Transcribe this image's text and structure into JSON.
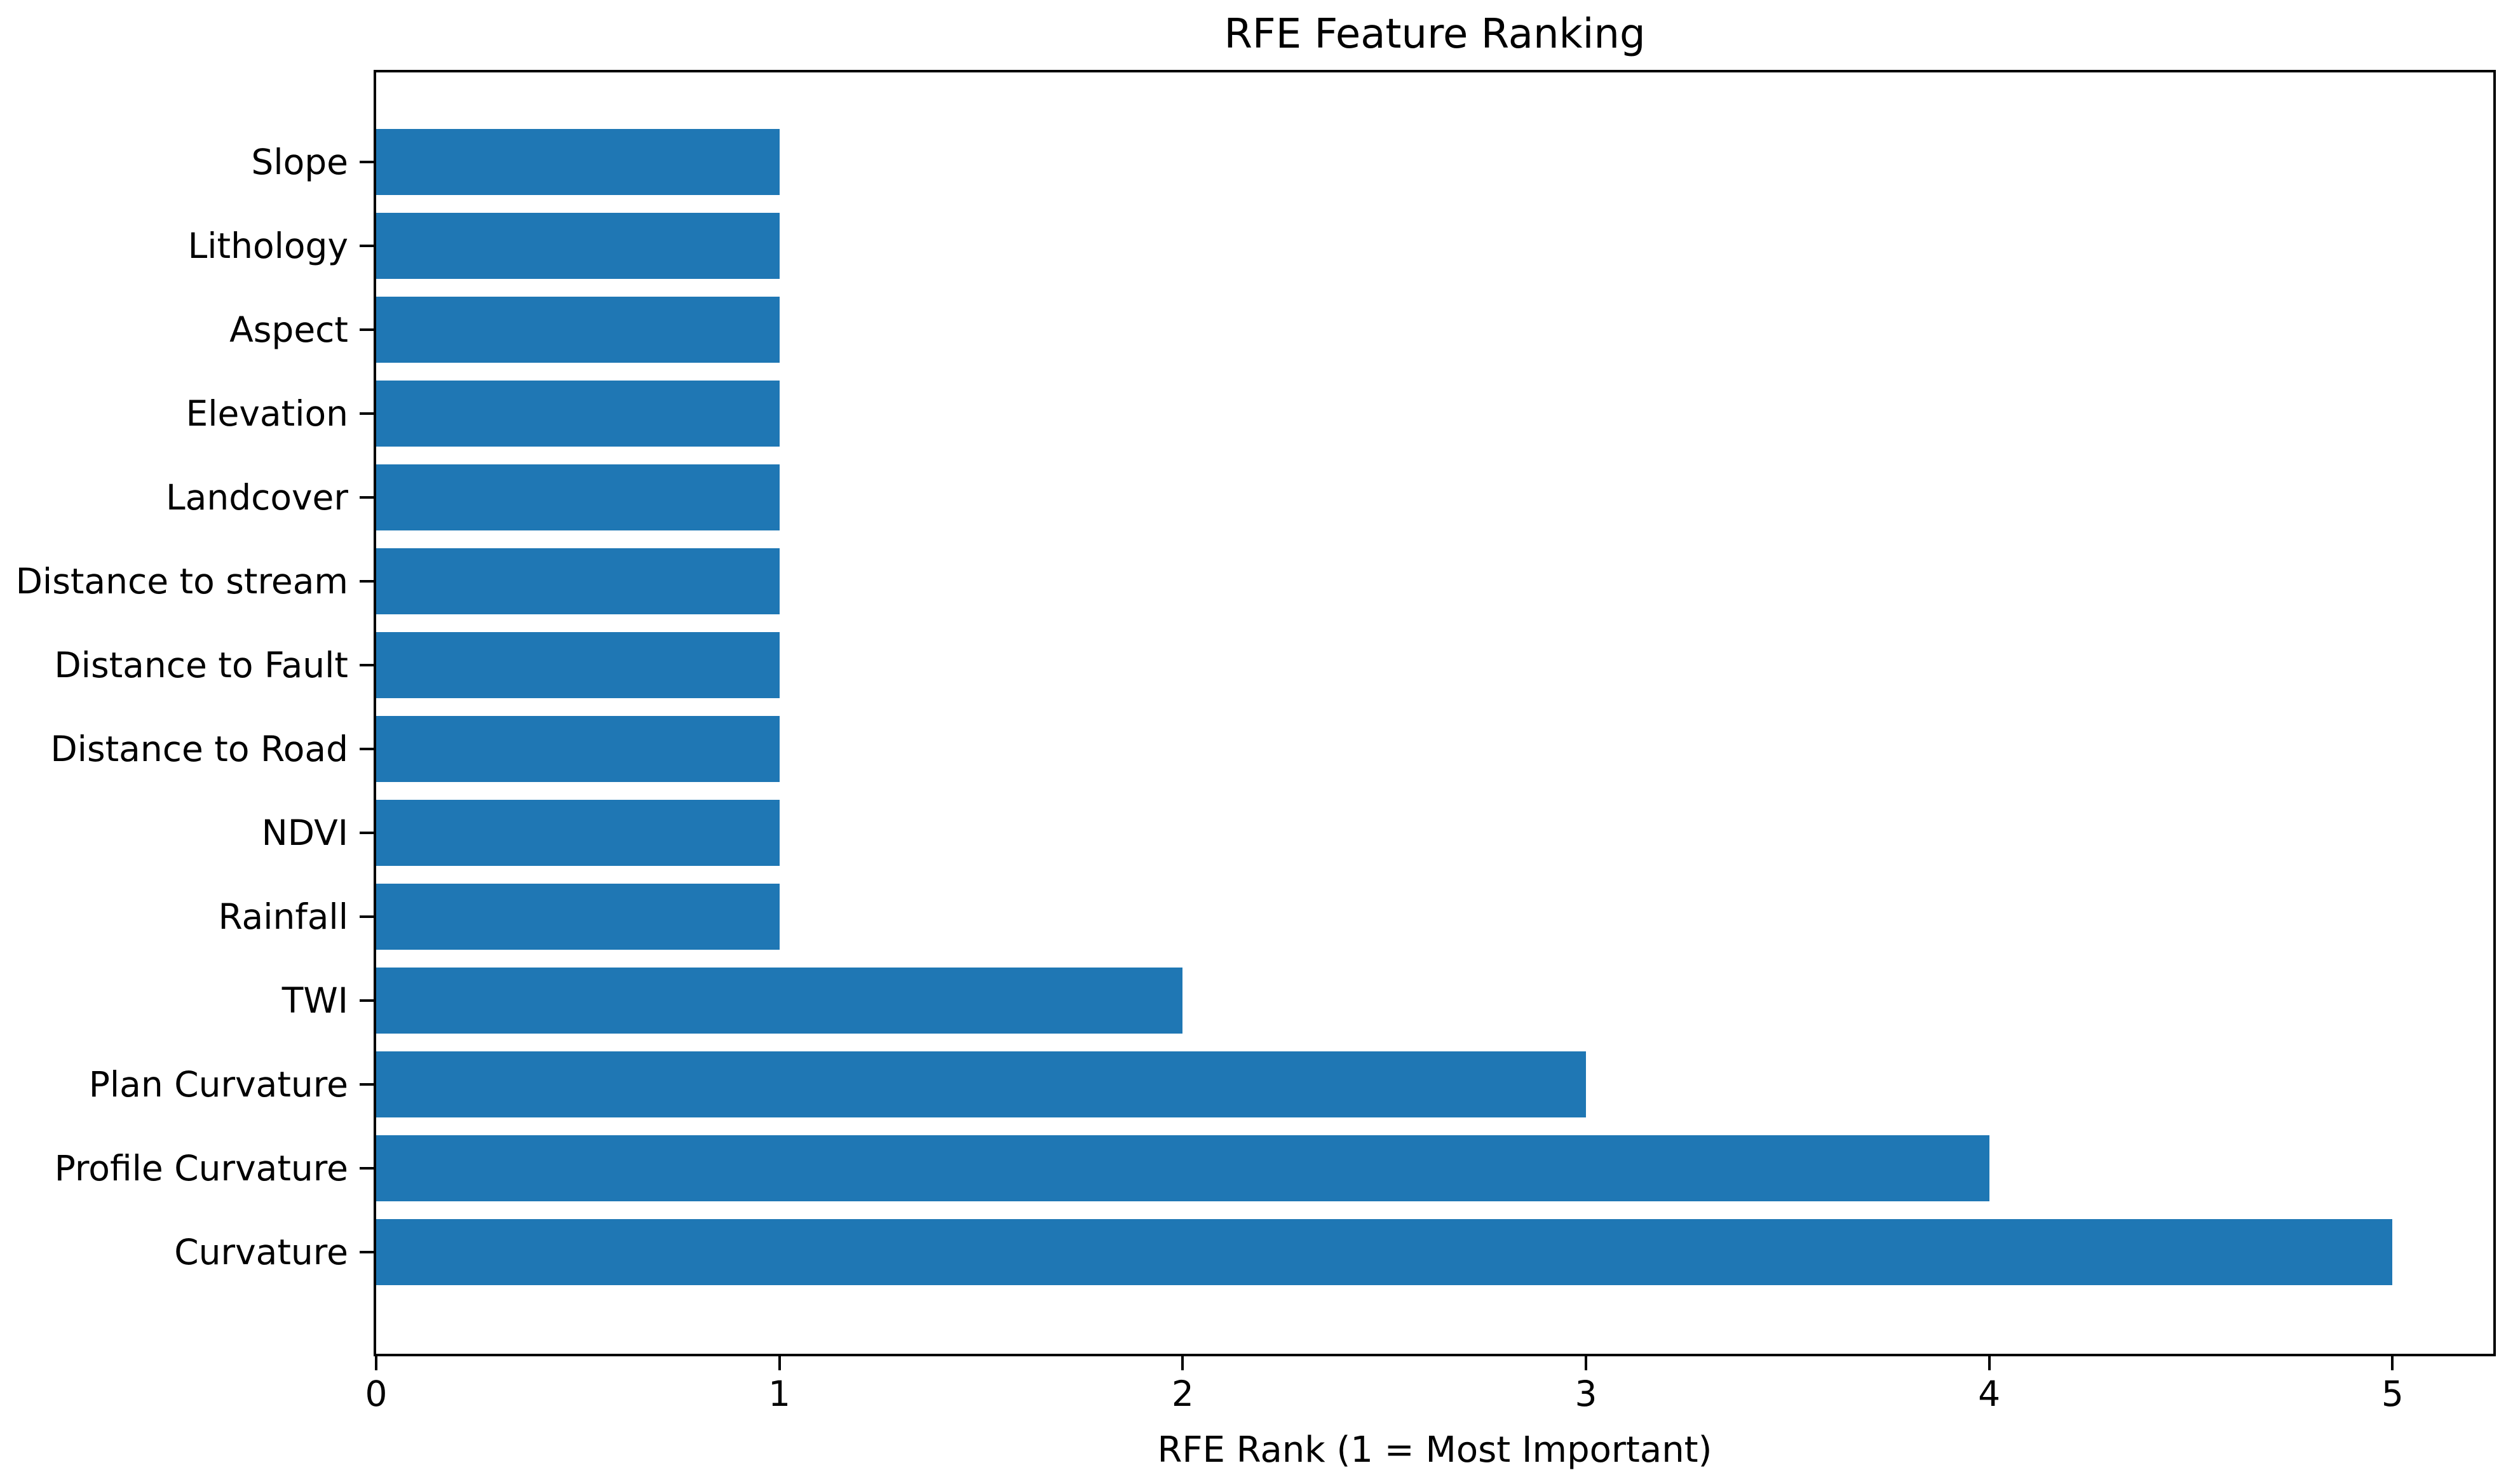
{
  "chart_data": {
    "type": "bar",
    "orientation": "horizontal",
    "title": "RFE Feature Ranking",
    "xlabel": "RFE Rank (1 = Most Important)",
    "ylabel": "",
    "categories": [
      "Slope",
      "Lithology",
      "Aspect",
      "Elevation",
      "Landcover",
      "Distance to stream",
      "Distance to Fault",
      "Distance to Road",
      "NDVI",
      "Rainfall",
      "TWI",
      "Plan Curvature",
      "Profile Curvature",
      "Curvature"
    ],
    "values": [
      1,
      1,
      1,
      1,
      1,
      1,
      1,
      1,
      1,
      1,
      2,
      3,
      4,
      5
    ],
    "x_ticks": [
      0,
      1,
      2,
      3,
      4,
      5
    ],
    "xlim": [
      0,
      5.25
    ],
    "bar_color": "#1f77b4",
    "axis_color": "#000000",
    "text_color": "#000000",
    "background_color": "#ffffff",
    "grid": false,
    "legend": null
  }
}
